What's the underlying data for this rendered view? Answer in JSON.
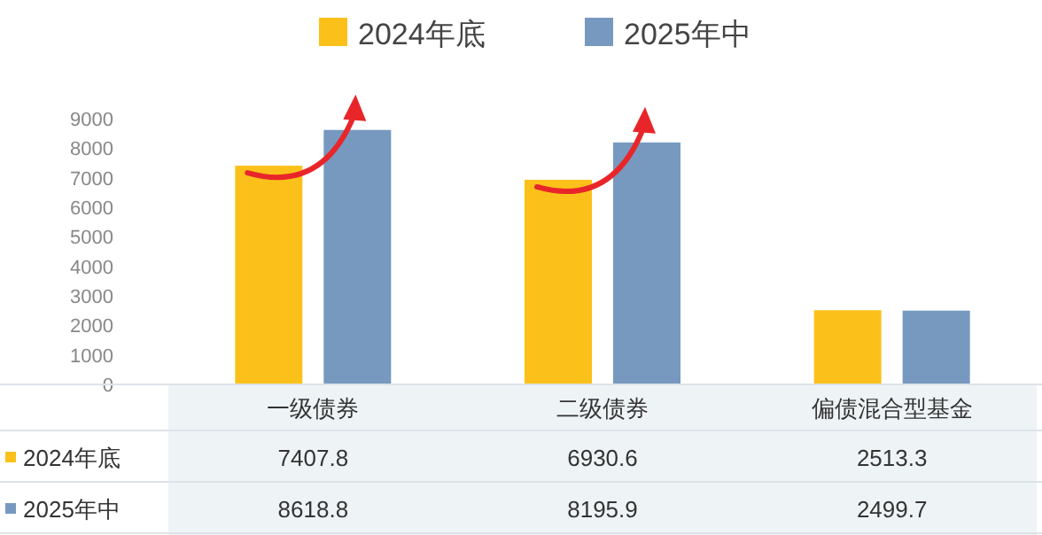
{
  "chart_data": {
    "type": "bar",
    "categories": [
      "一级债券",
      "二级债券",
      "偏债混合型基金"
    ],
    "series": [
      {
        "name": "2024年底",
        "color": "#fbc11a",
        "values": [
          7407.8,
          6930.6,
          2513.3
        ]
      },
      {
        "name": "2025年中",
        "color": "#7799bf",
        "values": [
          8618.8,
          8195.9,
          2499.7
        ]
      }
    ],
    "ylim": [
      0,
      9000
    ],
    "yticks": [
      0,
      1000,
      2000,
      3000,
      4000,
      5000,
      6000,
      7000,
      8000,
      9000
    ],
    "data_labels": true,
    "legend": "top",
    "grid": false
  }
}
